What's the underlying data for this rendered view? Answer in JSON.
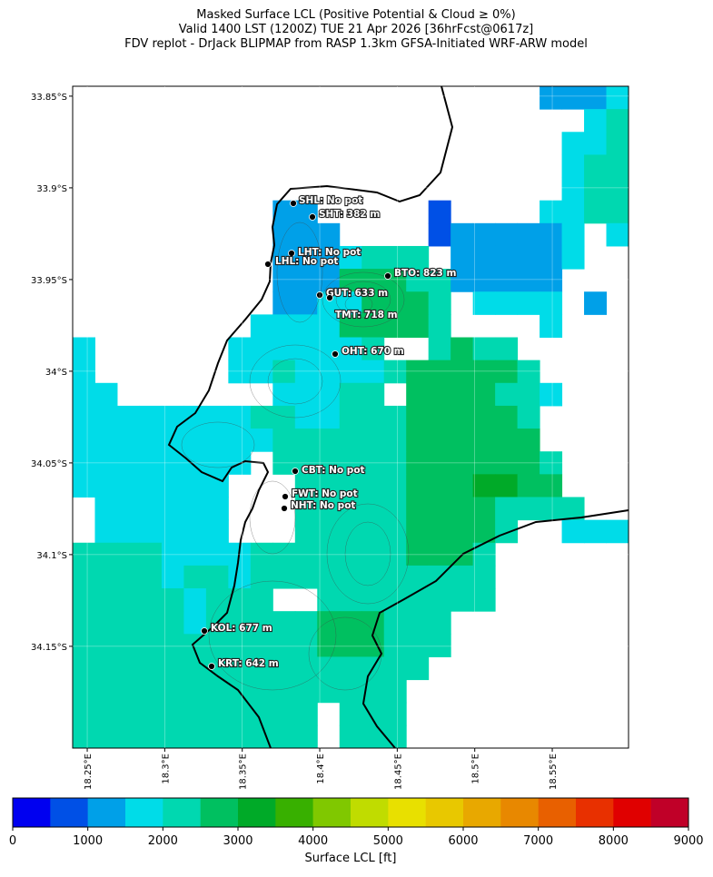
{
  "map": {
    "title_lines": [
      "Masked Surface LCL (Positive Potential & Cloud ≥ 0%)",
      "Valid 1400 LST (1200Z) TUE 21 Apr 2026 [36hrFcst@0617z]",
      "FDV replot - DrJack BLIPMAP from RASP 1.3km GFSA-Initiated WRF-ARW model"
    ],
    "xlim": [
      18.2406,
      18.5992
    ],
    "ylim": [
      -34.2055,
      -33.8446
    ],
    "xticks": [
      {
        "value": 18.25,
        "label": "18.25°E"
      },
      {
        "value": 18.3,
        "label": "18.3°E"
      },
      {
        "value": 18.35,
        "label": "18.35°E"
      },
      {
        "value": 18.4,
        "label": "18.4°E"
      },
      {
        "value": 18.45,
        "label": "18.45°E"
      },
      {
        "value": 18.5,
        "label": "18.5°E"
      },
      {
        "value": 18.55,
        "label": "18.55°E"
      }
    ],
    "yticks": [
      {
        "value": -33.85,
        "label": "33.85°S"
      },
      {
        "value": -33.9,
        "label": "33.9°S"
      },
      {
        "value": -33.95,
        "label": "33.95°S"
      },
      {
        "value": -34.0,
        "label": "34°S"
      },
      {
        "value": -34.05,
        "label": "34.05°S"
      },
      {
        "value": -34.1,
        "label": "34.1°S"
      },
      {
        "value": -34.15,
        "label": "34.15°S"
      }
    ],
    "stations": [
      "SHL: No pot",
      "SHT: 382 m",
      "LHT: No pot",
      "LHL: No pot",
      "BTO: 823 m",
      "GUT: 633 m",
      "TMT: 718 m",
      "OHT: 670 m",
      "CBT: No pot",
      "FWT: No pot",
      "NHT: No pot",
      "KOL: 677 m",
      "KRT: 642 m"
    ],
    "grid": [
      [
        null,
        null,
        null,
        null,
        null,
        null,
        null,
        null,
        null,
        null,
        null,
        null,
        null,
        null,
        null,
        null,
        null,
        null,
        null,
        null,
        null,
        1250,
        1250,
        1250,
        1750
      ],
      [
        null,
        null,
        null,
        null,
        null,
        null,
        null,
        null,
        null,
        null,
        null,
        null,
        null,
        null,
        null,
        null,
        null,
        null,
        null,
        null,
        null,
        null,
        null,
        1750,
        2250
      ],
      [
        null,
        null,
        null,
        null,
        null,
        null,
        null,
        null,
        null,
        null,
        null,
        null,
        null,
        null,
        null,
        null,
        null,
        null,
        null,
        null,
        null,
        null,
        1750,
        1750,
        2250
      ],
      [
        null,
        null,
        null,
        null,
        null,
        null,
        null,
        null,
        null,
        null,
        null,
        null,
        null,
        null,
        null,
        null,
        null,
        null,
        null,
        null,
        null,
        null,
        1750,
        2250,
        2250
      ],
      [
        null,
        null,
        null,
        null,
        null,
        null,
        null,
        null,
        null,
        null,
        null,
        null,
        null,
        null,
        null,
        null,
        null,
        null,
        null,
        null,
        null,
        null,
        1750,
        2250,
        2250
      ],
      [
        null,
        null,
        null,
        null,
        null,
        null,
        null,
        null,
        null,
        1250,
        1250,
        null,
        null,
        null,
        null,
        null,
        750,
        null,
        null,
        null,
        null,
        1750,
        1750,
        2250,
        2250
      ],
      [
        null,
        null,
        null,
        null,
        null,
        null,
        null,
        null,
        null,
        1250,
        1250,
        1250,
        null,
        null,
        null,
        null,
        750,
        1250,
        1250,
        1250,
        1250,
        1250,
        1750,
        null,
        1750
      ],
      [
        null,
        null,
        null,
        null,
        null,
        null,
        null,
        null,
        null,
        1250,
        1250,
        1250,
        1750,
        2250,
        2250,
        2250,
        null,
        1250,
        1250,
        1250,
        1250,
        1250,
        1750,
        null,
        null
      ],
      [
        null,
        null,
        null,
        null,
        null,
        null,
        null,
        null,
        null,
        1250,
        1250,
        1250,
        2750,
        2750,
        2750,
        2250,
        2250,
        1250,
        1250,
        1250,
        1250,
        1250,
        null,
        null,
        null
      ],
      [
        null,
        null,
        null,
        null,
        null,
        null,
        null,
        null,
        null,
        1250,
        1250,
        1750,
        1750,
        2750,
        2750,
        2750,
        2250,
        null,
        1750,
        1750,
        1750,
        1750,
        null,
        1250,
        null
      ],
      [
        null,
        null,
        null,
        null,
        null,
        null,
        null,
        null,
        1750,
        1750,
        1750,
        1750,
        2750,
        2750,
        2750,
        2750,
        2250,
        null,
        null,
        null,
        null,
        1750,
        null,
        null,
        null
      ],
      [
        1750,
        null,
        null,
        null,
        null,
        null,
        null,
        1750,
        1750,
        1750,
        1750,
        1750,
        1750,
        2250,
        null,
        null,
        2250,
        2750,
        2250,
        2250,
        null,
        null,
        null,
        null,
        null
      ],
      [
        1750,
        null,
        null,
        null,
        null,
        null,
        null,
        1750,
        1750,
        2250,
        1750,
        1750,
        1750,
        1750,
        2250,
        2750,
        2750,
        2750,
        2750,
        2750,
        2250,
        null,
        null,
        null,
        null
      ],
      [
        1750,
        1750,
        null,
        null,
        null,
        null,
        null,
        null,
        null,
        1750,
        1750,
        1750,
        2250,
        2250,
        null,
        2750,
        2750,
        2750,
        2750,
        2250,
        2250,
        1750,
        null,
        null,
        null
      ],
      [
        1750,
        1750,
        1750,
        1750,
        1750,
        1750,
        1750,
        1750,
        2250,
        2250,
        1750,
        1750,
        2250,
        2250,
        2250,
        2750,
        2750,
        2750,
        2750,
        2750,
        2250,
        null,
        null,
        null,
        null
      ],
      [
        1750,
        1750,
        1750,
        1750,
        1750,
        1750,
        1750,
        1750,
        1750,
        2250,
        2250,
        2250,
        2250,
        2250,
        2250,
        2750,
        2750,
        2750,
        2750,
        2750,
        2750,
        null,
        null,
        null,
        null
      ],
      [
        1750,
        1750,
        1750,
        1750,
        1750,
        1750,
        1750,
        1750,
        null,
        2250,
        2250,
        2250,
        2250,
        2250,
        2250,
        2750,
        2750,
        2750,
        2750,
        2750,
        2750,
        2250,
        null,
        null,
        null
      ],
      [
        1750,
        1750,
        1750,
        1750,
        1750,
        1750,
        1750,
        null,
        null,
        null,
        2250,
        2250,
        2250,
        2250,
        2250,
        2750,
        2750,
        2750,
        3250,
        3250,
        2750,
        2750,
        null,
        null,
        null
      ],
      [
        null,
        1750,
        1750,
        1750,
        1750,
        1750,
        1750,
        null,
        null,
        null,
        2250,
        2250,
        2250,
        2250,
        2250,
        2750,
        2750,
        2750,
        2750,
        2250,
        2250,
        2250,
        2250,
        null,
        null
      ],
      [
        null,
        1750,
        1750,
        1750,
        1750,
        1750,
        1750,
        null,
        null,
        null,
        2250,
        2250,
        2250,
        2250,
        2250,
        2750,
        2750,
        2750,
        2750,
        2250,
        null,
        null,
        1750,
        1750,
        1750
      ],
      [
        2250,
        2250,
        2250,
        2250,
        1750,
        1750,
        1750,
        1750,
        2250,
        2250,
        2250,
        2250,
        2250,
        2250,
        2250,
        2750,
        2750,
        2750,
        2250,
        null,
        null,
        null,
        null,
        null,
        null
      ],
      [
        2250,
        2250,
        2250,
        2250,
        1750,
        2250,
        2250,
        1750,
        2250,
        2250,
        2250,
        2250,
        2250,
        2250,
        2250,
        2250,
        2250,
        2250,
        2250,
        null,
        null,
        null,
        null,
        null,
        null
      ],
      [
        2250,
        2250,
        2250,
        2250,
        2250,
        1750,
        2250,
        2250,
        2250,
        null,
        null,
        2250,
        2250,
        2250,
        2250,
        2250,
        2250,
        2250,
        2250,
        null,
        null,
        null,
        null,
        null,
        null
      ],
      [
        2250,
        2250,
        2250,
        2250,
        2250,
        1750,
        2250,
        2250,
        2250,
        2250,
        2250,
        2750,
        2750,
        2750,
        2250,
        2250,
        2250,
        null,
        null,
        null,
        null,
        null,
        null,
        null,
        null
      ],
      [
        2250,
        2250,
        2250,
        2250,
        2250,
        2250,
        2250,
        2250,
        2250,
        2250,
        2250,
        2750,
        2750,
        2750,
        2250,
        2250,
        2250,
        null,
        null,
        null,
        null,
        null,
        null,
        null,
        null
      ],
      [
        2250,
        2250,
        2250,
        2250,
        2250,
        2250,
        2250,
        2250,
        2250,
        2250,
        2250,
        2250,
        2250,
        2250,
        2250,
        2250,
        null,
        null,
        null,
        null,
        null,
        null,
        null,
        null,
        null
      ],
      [
        2250,
        2250,
        2250,
        2250,
        2250,
        2250,
        2250,
        2250,
        2250,
        2250,
        2250,
        2250,
        2250,
        2250,
        2250,
        null,
        null,
        null,
        null,
        null,
        null,
        null,
        null,
        null,
        null
      ],
      [
        2250,
        2250,
        2250,
        2250,
        2250,
        2250,
        2250,
        2250,
        2250,
        2250,
        2250,
        null,
        2250,
        2250,
        2250,
        null,
        null,
        null,
        null,
        null,
        null,
        null,
        null,
        null,
        null
      ],
      [
        2250,
        2250,
        2250,
        2250,
        2250,
        2250,
        2250,
        2250,
        2250,
        2250,
        2250,
        null,
        2250,
        2250,
        2250,
        null,
        null,
        null,
        null,
        null,
        null,
        null,
        null,
        null,
        null
      ]
    ],
    "colorbar": {
      "label": "Surface LCL [ft]",
      "lim": [
        0,
        9000
      ],
      "ticks": [
        0,
        1000,
        2000,
        3000,
        4000,
        5000,
        6000,
        7000,
        8000,
        9000
      ],
      "bounds": [
        0,
        500,
        1000,
        1500,
        2000,
        2500,
        3000,
        3500,
        4000,
        4500,
        5000,
        5500,
        6000,
        6500,
        7000,
        7500,
        8000,
        8500,
        9000
      ],
      "colors": [
        "#0000f0",
        "#0050e6",
        "#00a0e8",
        "#00dce8",
        "#00d8b0",
        "#00c060",
        "#00aa28",
        "#38b000",
        "#80c800",
        "#c0dc00",
        "#e8e000",
        "#e8c800",
        "#e8a800",
        "#e88800",
        "#e86000",
        "#e83000",
        "#e00000",
        "#c00028"
      ]
    }
  }
}
